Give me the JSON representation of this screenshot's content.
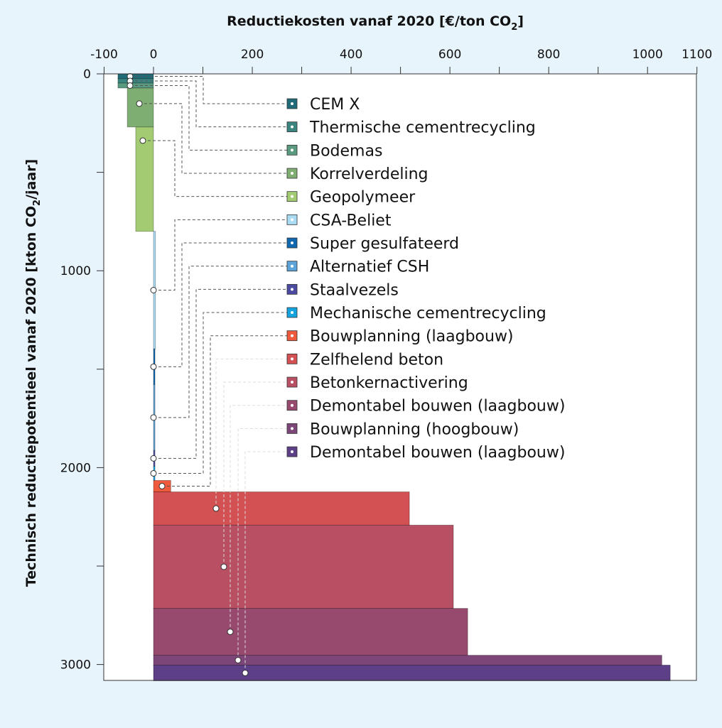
{
  "chart_data": {
    "type": "bar",
    "orientation": "horizontal-stacked-cost-curve",
    "xlabel": "Reductiekosten vanaf 2020 [€/ton CO",
    "xlabel_sub": "2",
    "xlabel_end": "]",
    "ylabel": "Technisch reductiepotentieel vanaf 2020 [kton CO",
    "ylabel_sub": "2",
    "ylabel_end": "/jaar]",
    "xlim": [
      -100,
      1100
    ],
    "ylim": [
      0,
      3083
    ],
    "x_ticks": [
      "-100",
      "0",
      "200",
      "400",
      "600",
      "800",
      "1000",
      "1100"
    ],
    "x_tick_values": [
      -100,
      0,
      200,
      400,
      600,
      800,
      1000,
      1100
    ],
    "y_ticks": [
      "0",
      "1000",
      "2000",
      "3000"
    ],
    "y_tick_values": [
      0,
      1000,
      2000,
      3000
    ],
    "legend_placement": "inside-top",
    "series": [
      {
        "name": "CEM X",
        "cost": -72,
        "potential": 25,
        "color": "#1f6b78"
      },
      {
        "name": "Thermische cementrecycling",
        "cost": -72,
        "potential": 22,
        "color": "#3a8580"
      },
      {
        "name": "Bodemas",
        "cost": -72,
        "potential": 25,
        "color": "#5a9a7e"
      },
      {
        "name": "Korrelverdeling",
        "cost": -53,
        "potential": 198,
        "color": "#7fae72"
      },
      {
        "name": "Geopolymeer",
        "cost": -36,
        "potential": 530,
        "color": "#a3cc72"
      },
      {
        "name": "CSA-Beliet",
        "cost": 4,
        "potential": 597,
        "color": "#a9dbf3"
      },
      {
        "name": "Super gesulfateerd",
        "cost": 3,
        "potential": 181,
        "color": "#0f68b0"
      },
      {
        "name": "Alternatief CSH",
        "cost": 3,
        "potential": 335,
        "color": "#5ba3d8"
      },
      {
        "name": "Staalvezels",
        "cost": 3,
        "potential": 80,
        "color": "#4a4aa0"
      },
      {
        "name": "Mechanische cementrecycling",
        "cost": 3,
        "potential": 72,
        "color": "#15a3e0"
      },
      {
        "name": "Bouwplanning (laagbouw)",
        "cost": 35,
        "potential": 58,
        "color": "#ee5a3b"
      },
      {
        "name": "Zelfhelend beton",
        "cost": 518,
        "potential": 169,
        "color": "#d35152"
      },
      {
        "name": "Betonkernactivering",
        "cost": 607,
        "potential": 423,
        "color": "#b84f63"
      },
      {
        "name": "Demontabel bouwen (laagbouw)",
        "cost": 636,
        "potential": 238,
        "color": "#98496e"
      },
      {
        "name": "Bouwplanning (hoogbouw)",
        "cost": 1029,
        "potential": 50,
        "color": "#7d4678"
      },
      {
        "name": "Demontabel bouwen (laagbouw)",
        "cost": 1046,
        "potential": 80,
        "color": "#5c3f86"
      }
    ]
  }
}
